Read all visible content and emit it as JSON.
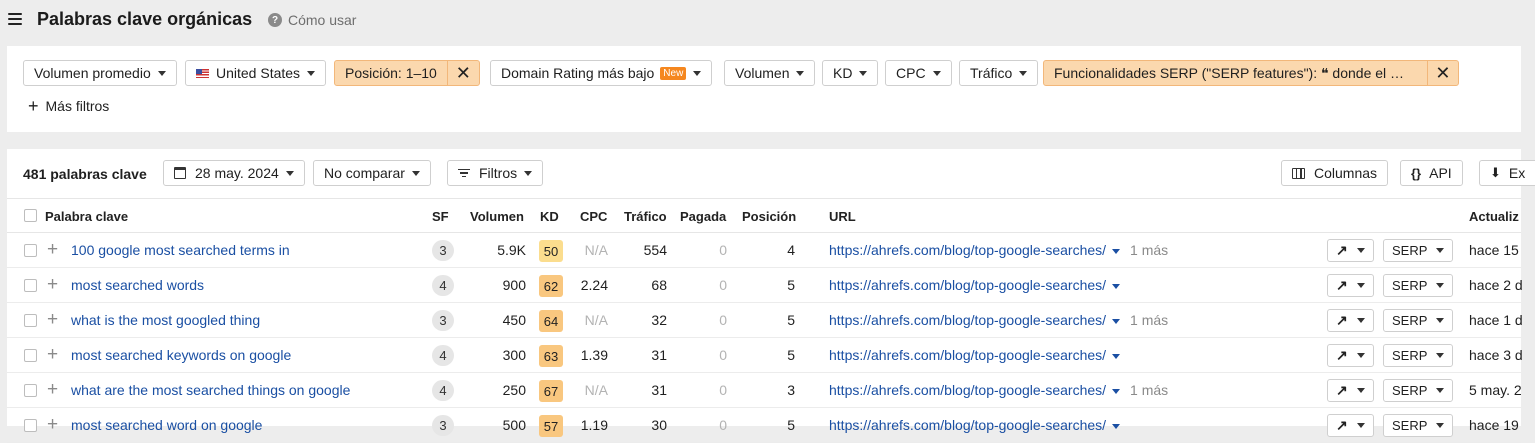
{
  "header": {
    "title": "Palabras clave orgánicas",
    "help_label": "Cómo usar"
  },
  "filters": {
    "volume_mode": "Volumen promedio",
    "country": "United States",
    "position": "Posición: 1–10",
    "domain_rating": "Domain Rating más bajo",
    "new_badge": "New",
    "volume": "Volumen",
    "kd": "KD",
    "cpc": "CPC",
    "traffic": "Tráfico",
    "serp_features": "Funcionalidades SERP (\"SERP features\"): ❝ donde el …",
    "more_filters": "Más filtros"
  },
  "toolbar": {
    "count": "481 palabras clave",
    "date": "28 may. 2024",
    "compare": "No comparar",
    "filters": "Filtros",
    "columns": "Columnas",
    "api": "API",
    "export": "Ex"
  },
  "table": {
    "headers": {
      "keyword": "Palabra clave",
      "sf": "SF",
      "volume": "Volumen",
      "kd": "KD",
      "cpc": "CPC",
      "traffic": "Tráfico",
      "paid": "Pagada",
      "position": "Posición",
      "url": "URL",
      "updated": "Actualiz"
    },
    "rows": [
      {
        "keyword": "100 google most searched terms in",
        "sf": "3",
        "volume": "5.9K",
        "kd": "50",
        "kd_color": "#fbdd8e",
        "cpc": "N/A",
        "traffic": "554",
        "paid": "0",
        "position": "4",
        "url": "https://ahrefs.com/blog/top-google-searches/",
        "more": "1 más",
        "serp": "SERP",
        "updated": "hace 15"
      },
      {
        "keyword": "most searched words",
        "sf": "4",
        "volume": "900",
        "kd": "62",
        "kd_color": "#f9c77f",
        "cpc": "2.24",
        "traffic": "68",
        "paid": "0",
        "position": "5",
        "url": "https://ahrefs.com/blog/top-google-searches/",
        "more": "",
        "serp": "SERP",
        "updated": "hace 2 d"
      },
      {
        "keyword": "what is the most googled thing",
        "sf": "3",
        "volume": "450",
        "kd": "64",
        "kd_color": "#f9c77f",
        "cpc": "N/A",
        "traffic": "32",
        "paid": "0",
        "position": "5",
        "url": "https://ahrefs.com/blog/top-google-searches/",
        "more": "1 más",
        "serp": "SERP",
        "updated": "hace 1 d"
      },
      {
        "keyword": "most searched keywords on google",
        "sf": "4",
        "volume": "300",
        "kd": "63",
        "kd_color": "#f9c77f",
        "cpc": "1.39",
        "traffic": "31",
        "paid": "0",
        "position": "5",
        "url": "https://ahrefs.com/blog/top-google-searches/",
        "more": "",
        "serp": "SERP",
        "updated": "hace 3 d"
      },
      {
        "keyword": "what are the most searched things on google",
        "sf": "4",
        "volume": "250",
        "kd": "67",
        "kd_color": "#f9c77f",
        "cpc": "N/A",
        "traffic": "31",
        "paid": "0",
        "position": "3",
        "url": "https://ahrefs.com/blog/top-google-searches/",
        "more": "1 más",
        "serp": "SERP",
        "updated": "5 may. 2"
      },
      {
        "keyword": "most searched word on google",
        "sf": "3",
        "volume": "500",
        "kd": "57",
        "kd_color": "#f9c77f",
        "cpc": "1.19",
        "traffic": "30",
        "paid": "0",
        "position": "5",
        "url": "https://ahrefs.com/blog/top-google-searches/",
        "more": "",
        "serp": "SERP",
        "updated": "hace 19"
      }
    ]
  }
}
